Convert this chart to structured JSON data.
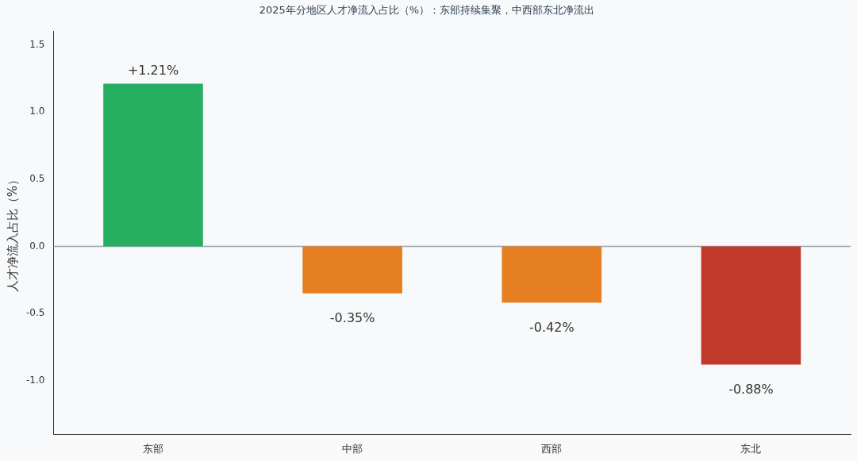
{
  "chart_data": {
    "type": "bar",
    "title": "2025年分地区人才净流入占比（%）：东部持续集聚，中西部东北净流出",
    "ylabel": "人才净流入占比（%）",
    "categories": [
      "东部",
      "中部",
      "西部",
      "东北"
    ],
    "values": [
      1.21,
      -0.35,
      -0.42,
      -0.88
    ],
    "colors": [
      "#27ae60",
      "#e67e22",
      "#e67e22",
      "#c0392b"
    ],
    "value_labels": [
      "+1.21%",
      "-0.35%",
      "-0.42%",
      "-0.88%"
    ],
    "ylim": [
      -1.4,
      1.6
    ],
    "yticks": [
      {
        "value": -1,
        "label": "-1.0"
      },
      {
        "value": -0.5,
        "label": "-0.5"
      },
      {
        "value": 0,
        "label": "0.0"
      },
      {
        "value": 0.5,
        "label": "0.5"
      },
      {
        "value": 1,
        "label": "1.0"
      },
      {
        "value": 1.5,
        "label": "1.5"
      }
    ],
    "ref_lines": [
      {
        "axis": "y",
        "value": 0,
        "color": "#95a5a6"
      }
    ],
    "grid": false,
    "legend": false
  }
}
